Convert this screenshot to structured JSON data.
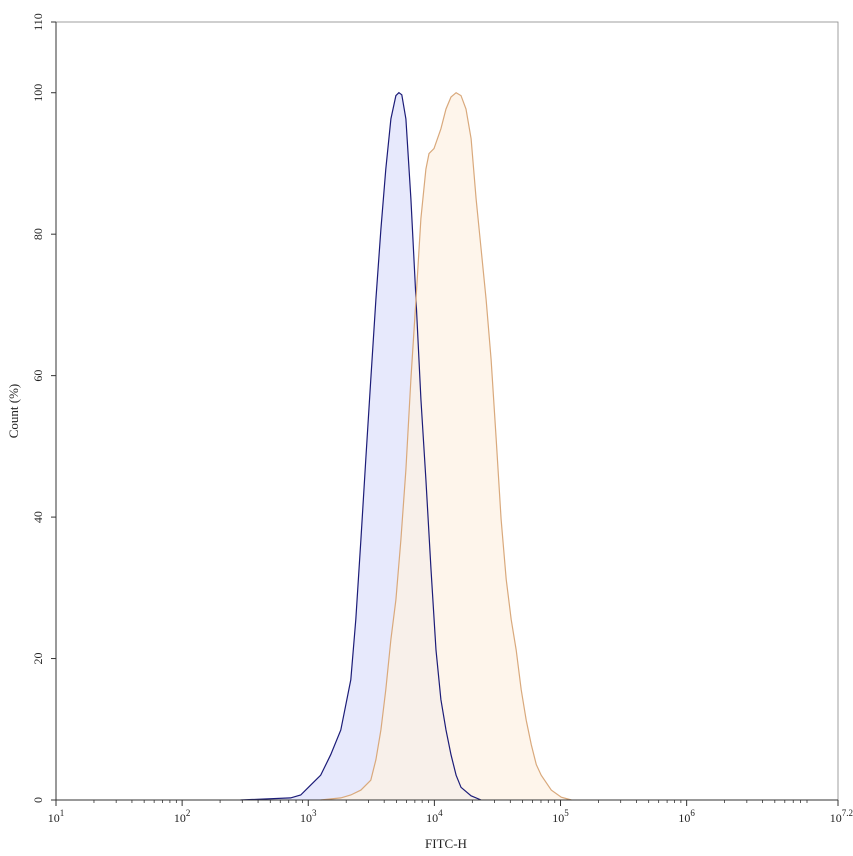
{
  "chart_data": {
    "type": "area",
    "title": "",
    "xlabel": "FITC-H",
    "ylabel": "Count  (%)",
    "xscale": "log",
    "xlim": [
      10,
      15848932
    ],
    "ylim": [
      0,
      110
    ],
    "grid": false,
    "x_tick_labels": [
      {
        "base": "10",
        "exp": "1",
        "value": 10
      },
      {
        "base": "10",
        "exp": "2",
        "value": 100
      },
      {
        "base": "10",
        "exp": "3",
        "value": 1000
      },
      {
        "base": "10",
        "exp": "4",
        "value": 10000
      },
      {
        "base": "10",
        "exp": "5",
        "value": 100000
      },
      {
        "base": "10",
        "exp": "6",
        "value": 1000000
      },
      {
        "base": "10",
        "exp": "7.2",
        "value": 15848932
      }
    ],
    "y_ticks": [
      "0",
      "20",
      "40",
      "60",
      "80",
      "100",
      "110"
    ],
    "series": [
      {
        "line_color": "#1c1c78",
        "fill_color": "#dfe2fb",
        "x": [
          290,
          725,
          871,
          1045,
          1256,
          1507,
          1811,
          2173,
          2382,
          2612,
          2858,
          3133,
          3436,
          3767,
          4121,
          4519,
          4955,
          5236,
          5521,
          5943,
          6516,
          7145,
          7816,
          8570,
          9397,
          10304,
          11272,
          12359,
          13552,
          14859,
          16255,
          19543,
          23442
        ],
        "y": [
          0,
          0.3,
          0.7,
          2.1,
          3.5,
          6.4,
          9.9,
          17.0,
          25.5,
          36.8,
          48.2,
          59.5,
          70.8,
          80.7,
          89.2,
          96.3,
          99.6,
          100,
          99.7,
          96.3,
          85.0,
          70.8,
          56.7,
          45.3,
          32.6,
          21.2,
          14.2,
          9.9,
          6.4,
          3.5,
          1.8,
          0.6,
          0
        ]
      },
      {
        "line_color": "#d9a97c",
        "fill_color": "#fdf1e4",
        "x": [
          1256,
          1811,
          2173,
          2612,
          3133,
          3436,
          3767,
          4121,
          4519,
          4955,
          5427,
          5943,
          6516,
          7145,
          7816,
          8570,
          9057,
          9931,
          11272,
          12359,
          13552,
          14859,
          16255,
          17820,
          19543,
          21428,
          23442,
          25704,
          28184,
          30903,
          33806,
          37068,
          40644,
          44566,
          48752,
          53456,
          58614,
          64269,
          70307,
          84528,
          101391,
          121899
        ],
        "y": [
          0,
          0.3,
          0.7,
          1.4,
          2.8,
          5.7,
          9.9,
          15.6,
          22.7,
          28.3,
          36.8,
          46.7,
          59.5,
          70.8,
          82.2,
          89.2,
          91.4,
          92.1,
          94.9,
          97.7,
          99.4,
          100,
          99.6,
          97.7,
          93.5,
          85.0,
          77.9,
          70.8,
          62.3,
          51.0,
          39.7,
          31.2,
          25.5,
          21.2,
          15.6,
          11.3,
          7.8,
          5.0,
          3.5,
          1.4,
          0.4,
          0
        ]
      }
    ]
  }
}
